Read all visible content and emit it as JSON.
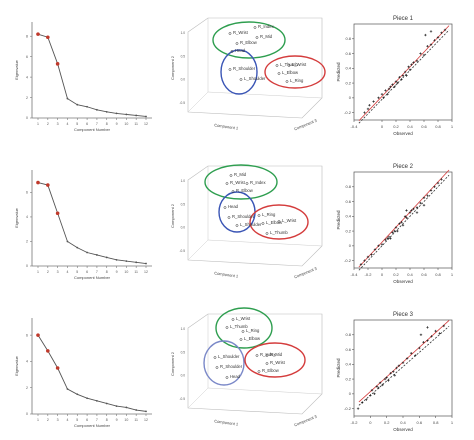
{
  "figure": {
    "rows": [
      {
        "scree": {
          "ylabel": "Eigenvalue",
          "xlabel": "Component Number",
          "xticks": [
            "1",
            "2",
            "3",
            "4",
            "5",
            "6",
            "7",
            "8",
            "9",
            "10",
            "11",
            "12"
          ],
          "yticks": [
            "0",
            "2",
            "4",
            "6",
            "8"
          ]
        },
        "pca": {
          "xlabel": "Component 1",
          "ylabel": "Component 2",
          "zlabel": "Component 3",
          "ytick_labels": [
            "1.0",
            "0.5",
            "0.0",
            "-0.5"
          ]
        },
        "regression": {
          "title": "Piece 1",
          "xlabel": "Observed",
          "ylabel": "Predicted",
          "xticks": [
            "-0.4",
            "0",
            "0.2",
            "0.4",
            "0.6",
            "0.8",
            "1"
          ],
          "yticks": [
            "-0.2",
            "0",
            "0.2",
            "0.4",
            "0.6",
            "0.8"
          ]
        }
      },
      {
        "scree": {
          "ylabel": "Eigenvalue",
          "xlabel": "Component Number",
          "xticks": [
            "1",
            "2",
            "3",
            "4",
            "5",
            "6",
            "7",
            "8",
            "9",
            "10",
            "11",
            "12"
          ],
          "yticks": [
            "0",
            "2",
            "4",
            "6"
          ]
        },
        "pca": {
          "xlabel": "Component 1",
          "ylabel": "Component 2",
          "zlabel": "Component 3",
          "ytick_labels": [
            "1.0",
            "0.5",
            "0.0",
            "-0.5"
          ]
        },
        "regression": {
          "title": "Piece 2",
          "xlabel": "Observed",
          "ylabel": "Predicted",
          "xticks": [
            "-0.4",
            "-0.2",
            "0",
            "0.2",
            "0.4",
            "0.6",
            "0.8",
            "1"
          ],
          "yticks": [
            "-0.2",
            "0",
            "0.2",
            "0.4",
            "0.6",
            "0.8"
          ]
        }
      },
      {
        "scree": {
          "ylabel": "Eigenvalue",
          "xlabel": "Component Number",
          "xticks": [
            "1",
            "2",
            "3",
            "4",
            "5",
            "6",
            "7",
            "8",
            "9",
            "10",
            "11",
            "12"
          ],
          "yticks": [
            "0",
            "2",
            "4",
            "6"
          ]
        },
        "pca": {
          "xlabel": "Component 1",
          "ylabel": "Component 2",
          "zlabel": "Component 3",
          "ytick_labels": [
            "1.0",
            "0.5",
            "0.0",
            "-0.5"
          ]
        },
        "regression": {
          "title": "Piece 3",
          "xlabel": "Observed",
          "ylabel": "Predicted",
          "xticks": [
            "-0.2",
            "0",
            "0.2",
            "0.4",
            "0.6",
            "0.8",
            "1"
          ],
          "yticks": [
            "-0.2",
            "0",
            "0.2",
            "0.4",
            "0.6",
            "0.8"
          ]
        }
      }
    ]
  },
  "chart_data": [
    {
      "type": "line",
      "panel": "scree-1",
      "x": [
        1,
        2,
        3,
        4,
        5,
        6,
        7,
        8,
        9,
        10,
        11,
        12
      ],
      "values": [
        8.2,
        7.9,
        5.3,
        1.9,
        1.3,
        1.1,
        0.8,
        0.6,
        0.45,
        0.35,
        0.25,
        0.15
      ],
      "highlighted_points": [
        1,
        2,
        3
      ],
      "xlabel": "Component Number",
      "ylabel": "Eigenvalue",
      "ylim": [
        0,
        9
      ],
      "colors": {
        "line": "#555555",
        "highlight": "#c0392b"
      }
    },
    {
      "type": "scatter",
      "panel": "pca-1",
      "series": [
        {
          "group": "green",
          "color": "#2e9e4f",
          "points": [
            "R_Wrist",
            "R_Index",
            "R_Mid",
            "R_Elbow",
            "Head"
          ]
        },
        {
          "group": "blue",
          "color": "#3a55b5",
          "points": [
            "R_Shoulder",
            "L_Shoulder"
          ]
        },
        {
          "group": "red",
          "color": "#d43c3c",
          "points": [
            "L_Thumb",
            "L_Wrist",
            "L_Elbow",
            "L_Ring"
          ]
        }
      ],
      "xlabel": "Component 1",
      "ylabel": "Component 2",
      "zlabel": "Component 3"
    },
    {
      "type": "scatter",
      "panel": "reg-1",
      "title": "Piece 1",
      "xlabel": "Observed",
      "ylabel": "Predicted",
      "xlim": [
        -0.4,
        1
      ],
      "ylim": [
        -0.3,
        1
      ],
      "points": [
        [
          -0.25,
          -0.2
        ],
        [
          -0.2,
          -0.15
        ],
        [
          -0.18,
          -0.1
        ],
        [
          -0.12,
          -0.05
        ],
        [
          -0.05,
          0.0
        ],
        [
          0.0,
          0.05
        ],
        [
          0.02,
          0.0
        ],
        [
          0.05,
          0.1
        ],
        [
          0.08,
          0.05
        ],
        [
          0.1,
          0.12
        ],
        [
          0.12,
          0.15
        ],
        [
          0.15,
          0.18
        ],
        [
          0.18,
          0.15
        ],
        [
          0.2,
          0.22
        ],
        [
          0.22,
          0.2
        ],
        [
          0.25,
          0.28
        ],
        [
          0.28,
          0.25
        ],
        [
          0.3,
          0.3
        ],
        [
          0.33,
          0.35
        ],
        [
          0.35,
          0.3
        ],
        [
          0.38,
          0.42
        ],
        [
          0.4,
          0.38
        ],
        [
          0.42,
          0.45
        ],
        [
          0.45,
          0.48
        ],
        [
          0.5,
          0.5
        ],
        [
          0.55,
          0.6
        ],
        [
          0.6,
          0.58
        ],
        [
          0.65,
          0.7
        ],
        [
          0.7,
          0.72
        ],
        [
          0.75,
          0.78
        ],
        [
          0.8,
          0.82
        ],
        [
          0.85,
          0.88
        ],
        [
          0.62,
          0.85
        ],
        [
          0.7,
          0.9
        ],
        [
          0.9,
          0.92
        ]
      ],
      "fit_lines": [
        {
          "style": "solid",
          "color": "#d43c3c",
          "intercept": 0.02,
          "slope": 1.0
        },
        {
          "style": "dashed",
          "color": "#333333",
          "intercept": -0.02,
          "slope": 0.98
        }
      ]
    },
    {
      "type": "line",
      "panel": "scree-2",
      "x": [
        1,
        2,
        3,
        4,
        5,
        6,
        7,
        8,
        9,
        10,
        11,
        12
      ],
      "values": [
        6.8,
        6.6,
        4.3,
        2.0,
        1.5,
        1.1,
        0.9,
        0.7,
        0.5,
        0.4,
        0.3,
        0.2
      ],
      "highlighted_points": [
        1,
        2,
        3
      ],
      "xlabel": "Component Number",
      "ylabel": "Eigenvalue",
      "ylim": [
        0,
        7.5
      ],
      "colors": {
        "line": "#555555",
        "highlight": "#c0392b"
      }
    },
    {
      "type": "scatter",
      "panel": "pca-2",
      "series": [
        {
          "group": "green",
          "color": "#2e9e4f",
          "points": [
            "R_Mid",
            "R_Wrist",
            "R_Index",
            "R_Elbow"
          ]
        },
        {
          "group": "blue",
          "color": "#3a55b5",
          "points": [
            "Head",
            "R_Shoulder",
            "L_Shoulder"
          ]
        },
        {
          "group": "red",
          "color": "#d43c3c",
          "points": [
            "L_Ring",
            "L_Elbow",
            "L_Wrist",
            "L_Thumb"
          ]
        }
      ],
      "xlabel": "Component 1",
      "ylabel": "Component 2",
      "zlabel": "Component 3"
    },
    {
      "type": "scatter",
      "panel": "reg-2",
      "title": "Piece 2",
      "xlabel": "Observed",
      "ylabel": "Predicted",
      "xlim": [
        -0.4,
        1
      ],
      "ylim": [
        -0.3,
        1
      ],
      "points": [
        [
          -0.3,
          -0.25
        ],
        [
          -0.25,
          -0.2
        ],
        [
          -0.2,
          -0.15
        ],
        [
          -0.15,
          -0.12
        ],
        [
          -0.1,
          -0.05
        ],
        [
          -0.05,
          0.0
        ],
        [
          0.0,
          0.02
        ],
        [
          0.05,
          0.08
        ],
        [
          0.08,
          0.1
        ],
        [
          0.1,
          0.12
        ],
        [
          0.12,
          0.1
        ],
        [
          0.15,
          0.18
        ],
        [
          0.18,
          0.2
        ],
        [
          0.2,
          0.25
        ],
        [
          0.22,
          0.2
        ],
        [
          0.25,
          0.3
        ],
        [
          0.28,
          0.32
        ],
        [
          0.3,
          0.28
        ],
        [
          0.33,
          0.4
        ],
        [
          0.35,
          0.38
        ],
        [
          0.4,
          0.45
        ],
        [
          0.42,
          0.48
        ],
        [
          0.45,
          0.5
        ],
        [
          0.5,
          0.52
        ],
        [
          0.55,
          0.58
        ],
        [
          0.6,
          0.65
        ],
        [
          0.65,
          0.68
        ],
        [
          0.7,
          0.75
        ],
        [
          0.75,
          0.8
        ],
        [
          0.8,
          0.85
        ],
        [
          0.85,
          0.9
        ],
        [
          0.6,
          0.55
        ],
        [
          0.5,
          0.45
        ],
        [
          0.35,
          0.48
        ]
      ],
      "fit_lines": [
        {
          "style": "solid",
          "color": "#d43c3c",
          "intercept": 0.05,
          "slope": 1.02
        },
        {
          "style": "dashed",
          "color": "#333333",
          "intercept": 0.0,
          "slope": 1.0
        }
      ]
    },
    {
      "type": "line",
      "panel": "scree-3",
      "x": [
        1,
        2,
        3,
        4,
        5,
        6,
        7,
        8,
        9,
        10,
        11,
        12
      ],
      "values": [
        6.0,
        4.8,
        3.5,
        1.9,
        1.5,
        1.2,
        1.0,
        0.8,
        0.6,
        0.5,
        0.3,
        0.2
      ],
      "highlighted_points": [
        1,
        2,
        3
      ],
      "xlabel": "Component Number",
      "ylabel": "Eigenvalue",
      "ylim": [
        0,
        7
      ],
      "colors": {
        "line": "#555555",
        "highlight": "#c0392b"
      }
    },
    {
      "type": "scatter",
      "panel": "pca-3",
      "series": [
        {
          "group": "green",
          "color": "#2e9e4f",
          "points": [
            "L_Wrist",
            "L_Thumb",
            "L_Ring",
            "L_Elbow"
          ]
        },
        {
          "group": "blue",
          "color": "#7a88c8",
          "points": [
            "L_Shoulder",
            "R_Shoulder",
            "Head"
          ]
        },
        {
          "group": "red",
          "color": "#d43c3c",
          "points": [
            "R_Index",
            "R_Mid",
            "R_Wrist",
            "R_Elbow"
          ]
        }
      ],
      "xlabel": "Component 1",
      "ylabel": "Component 2",
      "zlabel": "Component 3"
    },
    {
      "type": "scatter",
      "panel": "reg-3",
      "title": "Piece 3",
      "xlabel": "Observed",
      "ylabel": "Predicted",
      "xlim": [
        -0.2,
        1
      ],
      "ylim": [
        -0.3,
        1
      ],
      "points": [
        [
          -0.15,
          -0.2
        ],
        [
          -0.1,
          -0.12
        ],
        [
          -0.05,
          -0.08
        ],
        [
          0.0,
          -0.02
        ],
        [
          0.02,
          0.05
        ],
        [
          0.05,
          0.0
        ],
        [
          0.08,
          0.1
        ],
        [
          0.1,
          0.08
        ],
        [
          0.12,
          0.15
        ],
        [
          0.15,
          0.12
        ],
        [
          0.18,
          0.2
        ],
        [
          0.2,
          0.22
        ],
        [
          0.22,
          0.18
        ],
        [
          0.25,
          0.28
        ],
        [
          0.28,
          0.3
        ],
        [
          0.3,
          0.25
        ],
        [
          0.32,
          0.35
        ],
        [
          0.35,
          0.38
        ],
        [
          0.4,
          0.42
        ],
        [
          0.45,
          0.48
        ],
        [
          0.5,
          0.55
        ],
        [
          0.55,
          0.52
        ],
        [
          0.6,
          0.62
        ],
        [
          0.65,
          0.7
        ],
        [
          0.7,
          0.72
        ],
        [
          0.75,
          0.78
        ],
        [
          0.8,
          0.85
        ],
        [
          0.85,
          0.82
        ],
        [
          0.9,
          0.92
        ],
        [
          0.7,
          0.9
        ],
        [
          0.62,
          0.8
        ]
      ],
      "fit_lines": [
        {
          "style": "solid",
          "color": "#d43c3c",
          "intercept": 0.03,
          "slope": 1.0
        },
        {
          "style": "dashed",
          "color": "#333333",
          "intercept": -0.02,
          "slope": 0.97
        }
      ]
    }
  ]
}
